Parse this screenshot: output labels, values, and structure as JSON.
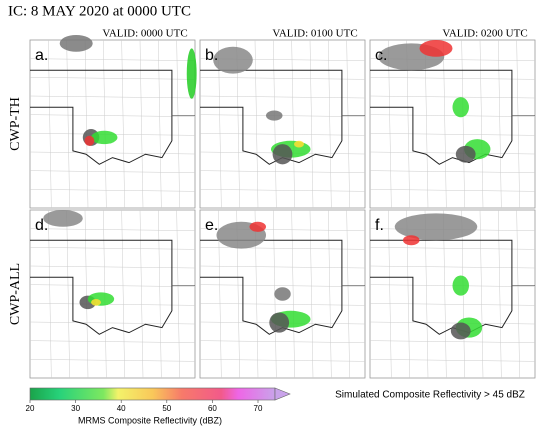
{
  "title": "IC: 8 MAY 2020 at 0000 UTC",
  "columns": [
    "VALID: 0000 UTC",
    "VALID: 0100 UTC",
    "VALID: 0200 UTC"
  ],
  "rows": [
    "CWP-TH",
    "CWP-ALL"
  ],
  "panels": [
    "a.",
    "b.",
    "c.",
    "d.",
    "e.",
    "f."
  ],
  "colorbar": {
    "ticks": [
      20,
      30,
      40,
      50,
      60,
      70
    ],
    "label": "MRMS Composite Reflectivity (dBZ)"
  },
  "legend": "Simulated Composite Reflectivity > 45 dBZ"
}
